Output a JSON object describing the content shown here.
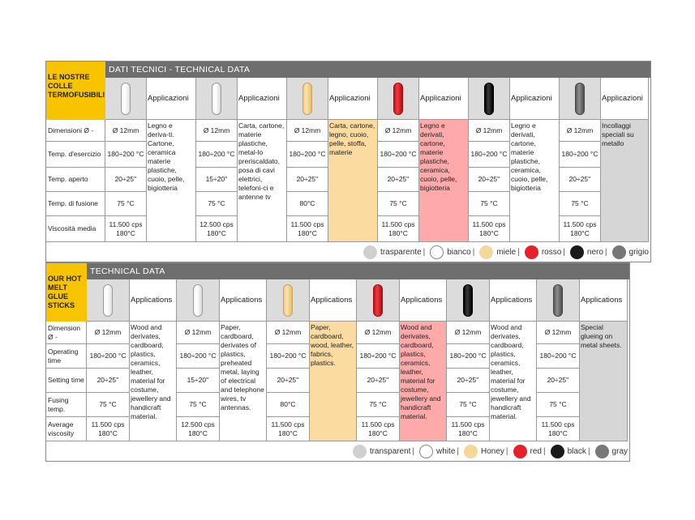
{
  "colors": {
    "transparent": "#d0d0d0",
    "white": "#ffffff",
    "honey": "#f6d79a",
    "red": "#e8202a",
    "black": "#1a1a1a",
    "gray": "#777777",
    "honey_bg": "#fbdba0",
    "red_bg": "#ffaaaa",
    "gray_bg": "#d6d6d6"
  },
  "tables": [
    {
      "brand": "LE NOSTRE COLLE TERMOFUSIBILI",
      "header": "DATI TECNICI - TECHNICAL DATA",
      "applications_label": "Applicazioni",
      "row_labels": [
        "Dimensioni Ø -",
        "Temp. d'esercizio",
        "Temp. aperto",
        "Temp. di fusione",
        "Viscosità media"
      ],
      "products": [
        {
          "color": "transparent",
          "values": [
            "Ø 12mm",
            "180÷200 °C",
            "20÷25''",
            "75 °C",
            "11.500 cps 180°C"
          ],
          "application": "Legno e deriva-ti. Cartone, ceramica materie plastiche, cuoio, pelle, bigiotteria"
        },
        {
          "color": "white",
          "values": [
            "Ø 12mm",
            "180÷200 °C",
            "15÷20''",
            "75 °C",
            "12.500 cps 180°C"
          ],
          "application": "Carta, cartone, materie plastiche, metal-lo preriscaldato, posa di cavi elettrici, telefoni-ci e antenne tv"
        },
        {
          "color": "honey",
          "values": [
            "Ø 12mm",
            "180÷200 °C",
            "20÷25''",
            "80°C",
            "11.500 cps 180°C"
          ],
          "application": "Carta, cartone, legno, cuoio, pelle, stoffa, materie"
        },
        {
          "color": "red",
          "values": [
            "Ø 12mm",
            "180÷200 °C",
            "20÷25''",
            "75 °C",
            "11.500 cps 180°C"
          ],
          "application": "Legno e derivati, cartone, materie plastiche, ceramica, cuoio, pelle, bigiotteria"
        },
        {
          "color": "black",
          "values": [
            "Ø 12mm",
            "180÷200 °C",
            "20÷25''",
            "75 °C",
            "11.500 cps 180°C"
          ],
          "application": "Legno e derivati, cartone, materie plastiche, ceramica, cuoio, pelle, bigiotteria"
        },
        {
          "color": "gray",
          "values": [
            "Ø 12mm",
            "180÷200 °C",
            "20÷25''",
            "75 °C",
            "11.500 cps 180°C"
          ],
          "application": "Incollaggi speciali su metallo"
        }
      ],
      "legend": [
        "trasparente",
        "bianco",
        "miele",
        "rosso",
        "nero",
        "grigio"
      ]
    },
    {
      "brand": "OUR HOT MELT GLUE STICKS",
      "header": "TECHNICAL DATA",
      "applications_label": "Applications",
      "row_labels": [
        "Dimension Ø -",
        "Operating time",
        "Setting time",
        "Fusing temp.",
        "Average viscosity"
      ],
      "products": [
        {
          "color": "transparent",
          "values": [
            "Ø 12mm",
            "180÷200 °C",
            "20÷25''",
            "75 °C",
            "11.500 cps 180°C"
          ],
          "application": "Wood and derivates, cardboard, plastics, ceramics, leather, material for costume, jewellery and handicraft material."
        },
        {
          "color": "white",
          "values": [
            "Ø 12mm",
            "180÷200 °C",
            "15÷20''",
            "75 °C",
            "12.500 cps 180°C"
          ],
          "application": "Paper, cardboard, derivates of plastics, preheated metal, laying of electrical and telephone wires, tv antennas."
        },
        {
          "color": "honey",
          "values": [
            "Ø 12mm",
            "180÷200 °C",
            "20÷25''",
            "80°C",
            "11.500 cps 180°C"
          ],
          "application": "Paper, cardboard, wood, leather, fabrics, plastics."
        },
        {
          "color": "red",
          "values": [
            "Ø 12mm",
            "180÷200 °C",
            "20÷25''",
            "75 °C",
            "11.500 cps 180°C"
          ],
          "application": "Wood and derivates, cardboard, plastics, ceramics, leather, material for costume, jewellery and handicraft material."
        },
        {
          "color": "black",
          "values": [
            "Ø 12mm",
            "180÷200 °C",
            "20÷25''",
            "75 °C",
            "11.500 cps 180°C"
          ],
          "application": "Wood and derivates, cardboard, plastics, ceramics, leather, material for costume, jewellery and handicraft material."
        },
        {
          "color": "gray",
          "values": [
            "Ø 12mm",
            "180÷200 °C",
            "20÷25''",
            "75 °C",
            "11.500 cps 180°C"
          ],
          "application": "Special glueing on metal sheets."
        }
      ],
      "legend": [
        "transparent",
        "white",
        "Honey",
        "red",
        "black",
        "gray"
      ]
    }
  ]
}
